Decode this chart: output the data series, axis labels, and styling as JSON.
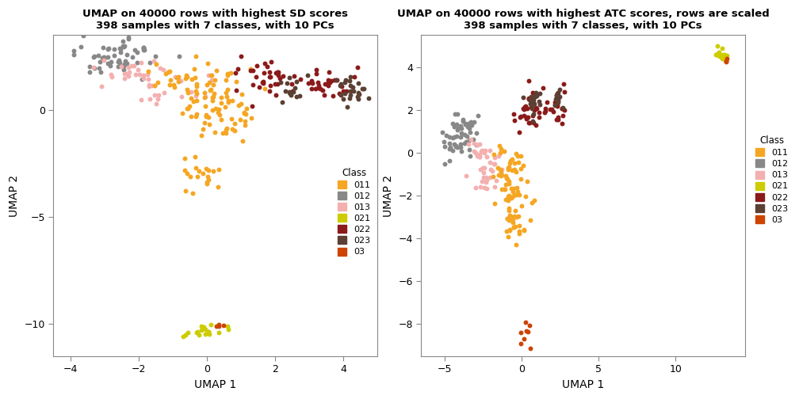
{
  "title1": "UMAP on 40000 rows with highest SD scores\n398 samples with 7 classes, with 10 PCs",
  "title2": "UMAP on 40000 rows with highest ATC scores, rows are scaled\n398 samples with 7 classes, with 10 PCs",
  "xlabel": "UMAP 1",
  "ylabel": "UMAP 2",
  "classes": [
    "011",
    "012",
    "013",
    "021",
    "022",
    "023",
    "03"
  ],
  "colors": {
    "011": "#F5A623",
    "012": "#888888",
    "013": "#F4AFAF",
    "021": "#CCCC00",
    "022": "#8B1A1A",
    "023": "#5C4033",
    "03": "#CC4400"
  },
  "point_size": 18,
  "plot1": {
    "xlim": [
      -4.5,
      5.0
    ],
    "ylim": [
      -11.5,
      3.5
    ],
    "xticks": [
      -4,
      -2,
      0,
      2,
      4
    ],
    "yticks": [
      -10,
      -5,
      0
    ]
  },
  "plot2": {
    "xlim": [
      -6.5,
      14.5
    ],
    "ylim": [
      -9.5,
      5.5
    ],
    "xticks": [
      -5,
      0,
      5,
      10
    ],
    "yticks": [
      -8,
      -6,
      -4,
      -2,
      0,
      2,
      4
    ]
  }
}
